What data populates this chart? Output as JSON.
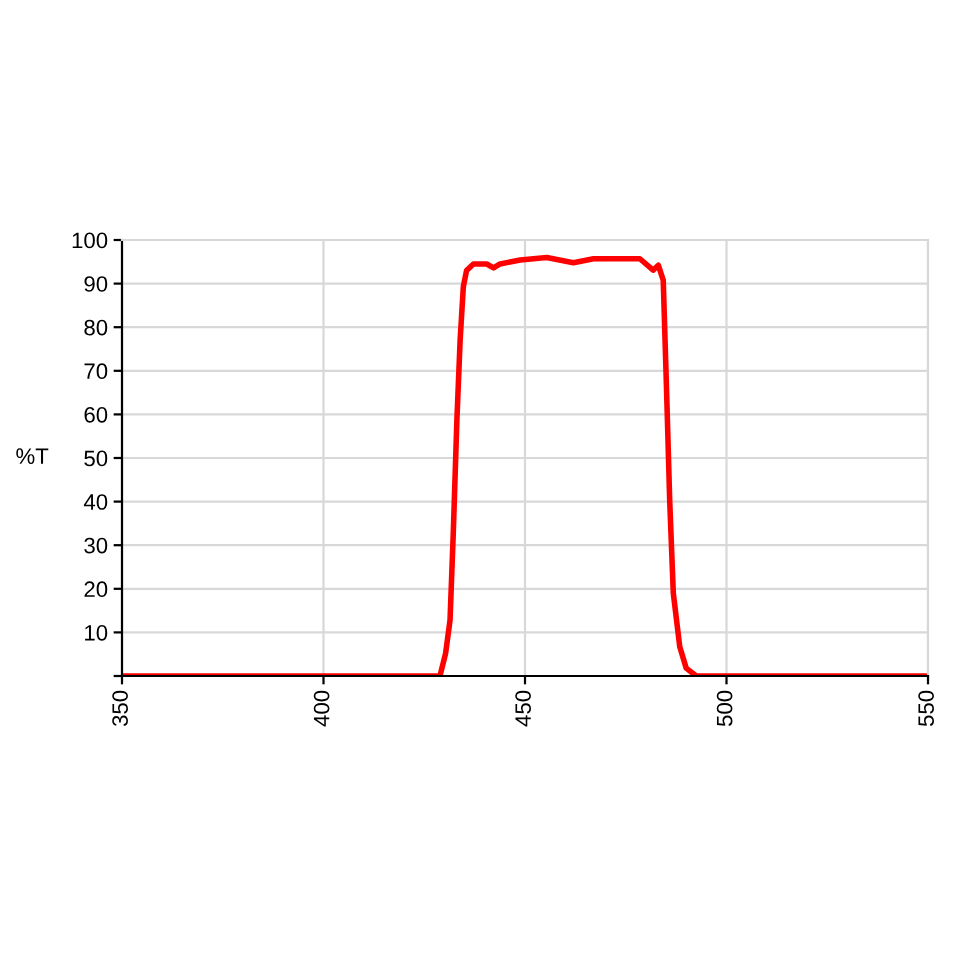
{
  "chart_data": {
    "type": "line",
    "ylabel": "%T",
    "series": [
      {
        "color": "#ff0000",
        "x": [
          350,
          428.9,
          430.3,
          431.4,
          432.2,
          433.1,
          433.9,
          434.7,
          435.5,
          437.2,
          440.5,
          442.2,
          443.8,
          448.8,
          455.4,
          462,
          467,
          478.5,
          481.8,
          483.1,
          484.3,
          485.1,
          485.9,
          486.8,
          488.4,
          490,
          492.5,
          550
        ],
        "values": [
          0,
          0,
          5.2,
          12.8,
          32.7,
          58.7,
          77,
          89.3,
          93,
          94.5,
          94.5,
          93.6,
          94.5,
          95.4,
          96,
          94.8,
          95.7,
          95.7,
          93.1,
          94.2,
          90.8,
          66.4,
          40.4,
          19,
          6.7,
          1.8,
          0,
          0
        ]
      }
    ],
    "xlim": [
      350,
      550
    ],
    "xticks": [
      350,
      400,
      450,
      500,
      550
    ],
    "ylim": [
      0,
      100
    ],
    "yticks": [
      {
        "value": 0,
        "label": null
      },
      10,
      20,
      30,
      40,
      50,
      60,
      70,
      80,
      90,
      100
    ],
    "grid": true,
    "marker": "none",
    "line_style": "solid",
    "legend": false
  }
}
